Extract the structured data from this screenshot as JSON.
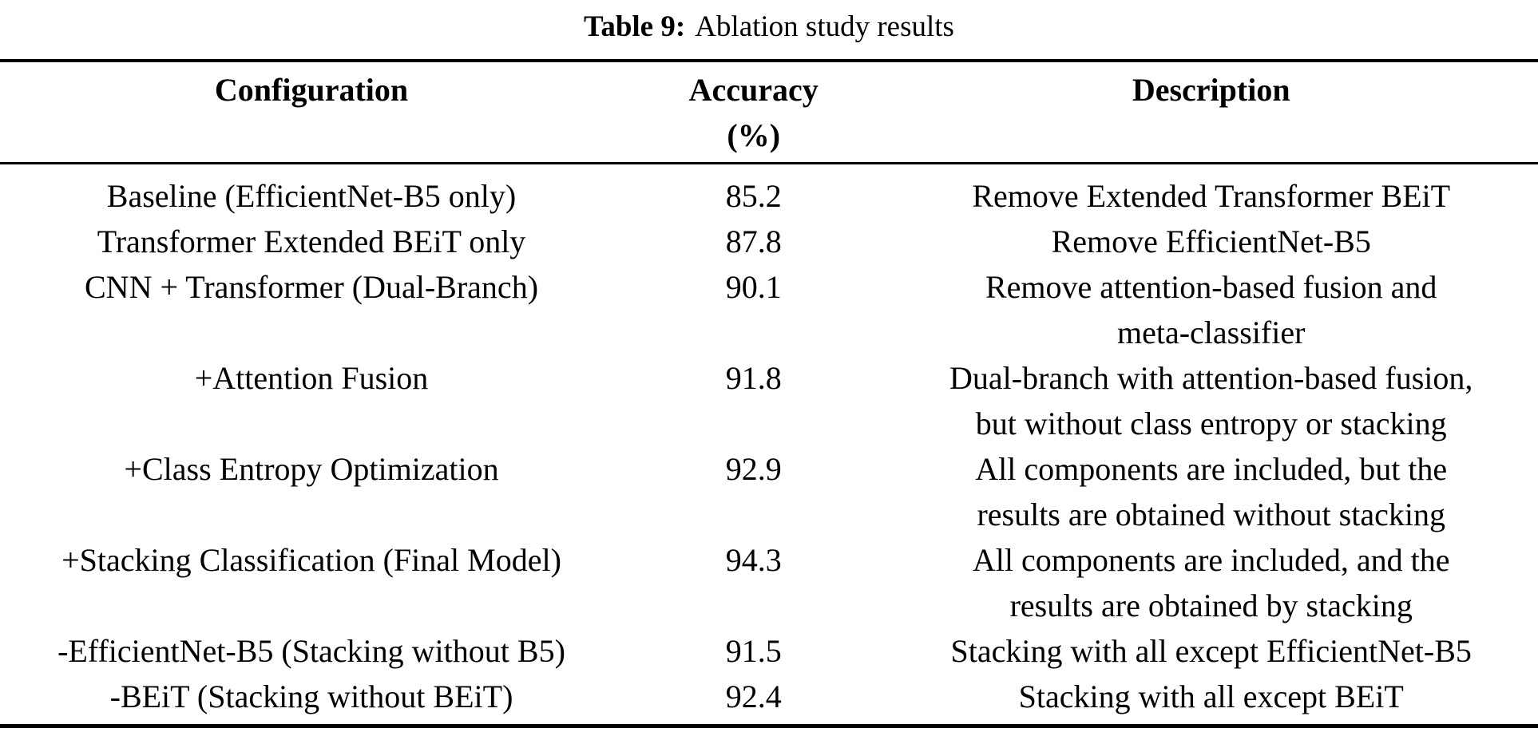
{
  "caption": {
    "label": "Table 9:",
    "text": "Ablation study results"
  },
  "table": {
    "headers": [
      "Configuration",
      "Accuracy\n(%)",
      "Description"
    ],
    "rows": [
      {
        "configuration": "Baseline (EfficientNet-B5 only)",
        "accuracy": "85.2",
        "description": "Remove Extended Transformer BEiT"
      },
      {
        "configuration": "Transformer Extended BEiT only",
        "accuracy": "87.8",
        "description": "Remove EfficientNet-B5"
      },
      {
        "configuration": "CNN + Transformer (Dual-Branch)",
        "accuracy": "90.1",
        "description": "Remove attention-based fusion and\nmeta-classifier"
      },
      {
        "configuration": "+Attention Fusion",
        "accuracy": "91.8",
        "description": "Dual-branch with attention-based fusion,\nbut without class entropy or stacking"
      },
      {
        "configuration": "+Class Entropy Optimization",
        "accuracy": "92.9",
        "description": "All components are included, but the\nresults are obtained without stacking"
      },
      {
        "configuration": "+Stacking Classification (Final Model)",
        "accuracy": "94.3",
        "description": "All components are included, and the\nresults are obtained by stacking"
      },
      {
        "configuration": "-EfficientNet-B5 (Stacking without B5)",
        "accuracy": "91.5",
        "description": "Stacking with all except EfficientNet-B5"
      },
      {
        "configuration": "-BEiT (Stacking without BEiT)",
        "accuracy": "92.4",
        "description": "Stacking with all except BEiT"
      }
    ]
  },
  "colors": {
    "text": "#000000",
    "background": "#ffffff",
    "rule": "#000000"
  }
}
